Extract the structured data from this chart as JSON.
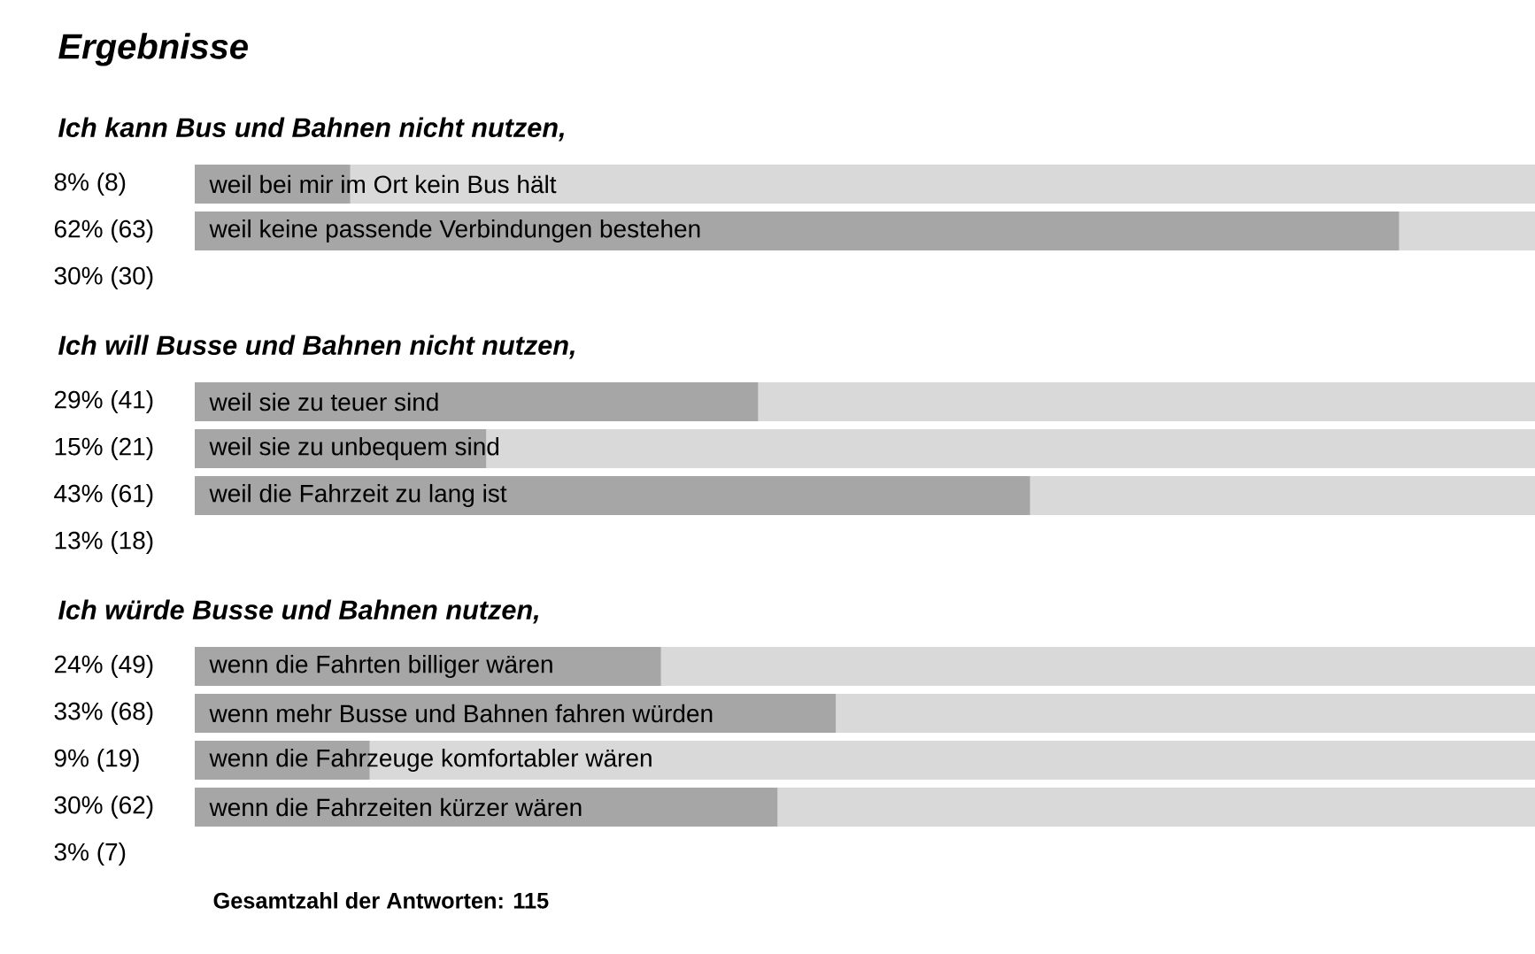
{
  "chart_data": [
    {
      "type": "bar",
      "orientation": "horizontal",
      "title": "Ergebnisse",
      "subtitle": "Ich kann Bus und Bahnen nicht nutzen,",
      "categories": [
        "weil bei mir im Ort kein Bus hält",
        "weil keine passende Verbindungen bestehen",
        null
      ],
      "values": [
        8,
        62,
        null
      ],
      "value_labels": [
        "8% (8)",
        "62% (63)",
        "30% (30)"
      ],
      "color": "#a6a6a6",
      "xlim": [
        0,
        69
      ],
      "tick_labels": "y"
    },
    {
      "type": "bar",
      "orientation": "horizontal",
      "title": "Ich will Busse und Bahnen nicht nutzen,",
      "categories": [
        "weil sie zu teuer sind",
        "weil sie zu unbequem sind",
        "weil die Fahrzeit zu lang ist",
        null
      ],
      "values": [
        29,
        15,
        43,
        null
      ],
      "value_labels": [
        "29% (41)",
        "15% (21)",
        "43% (61)",
        "13% (18)"
      ],
      "color": "#a6a6a6",
      "xlim": [
        0,
        69
      ],
      "tick_labels": "y"
    },
    {
      "type": "bar",
      "orientation": "horizontal",
      "title": "Ich würde Busse und Bahnen nutzen,",
      "categories": [
        "wenn die Fahrten billiger wären",
        "wenn mehr Busse und Bahnen fahren würden",
        "wenn die Fahrzeuge komfortabler wären",
        "wenn die Fahrzeiten kürzer wären",
        null
      ],
      "values": [
        24,
        33,
        9,
        30,
        null
      ],
      "value_labels": [
        "24% (49)",
        "33% (68)",
        "9% (19)",
        "30% (62)",
        "3% (7)"
      ],
      "color": "#a6a6a6",
      "xlim": [
        0,
        69
      ],
      "tick_labels": "y",
      "annotations": [
        "Gesamtzahl der Antworten: 115"
      ]
    }
  ]
}
